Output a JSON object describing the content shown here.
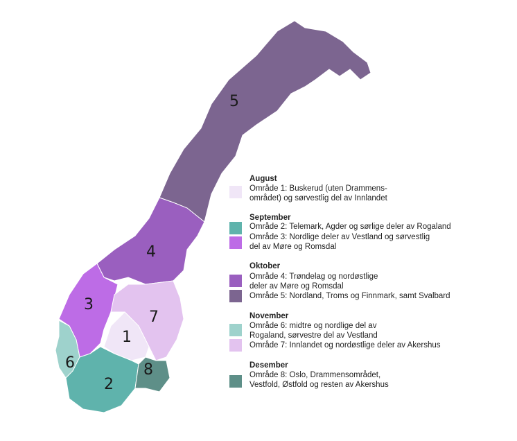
{
  "regions": [
    {
      "number": "1",
      "color": "#f0e6f7"
    },
    {
      "number": "2",
      "color": "#5fb3ac"
    },
    {
      "number": "3",
      "color": "#bd6ce6"
    },
    {
      "number": "4",
      "color": "#9a5fbf"
    },
    {
      "number": "5",
      "color": "#7c6590"
    },
    {
      "number": "6",
      "color": "#9ed2cc"
    },
    {
      "number": "7",
      "color": "#e3c3ef"
    },
    {
      "number": "8",
      "color": "#5e8f88"
    }
  ],
  "legend": [
    {
      "month": "August",
      "items": [
        {
          "lines": [
            "Område 1: Buskerud (uten Drammens-",
            "området) og sørvestlig del av Innlandet"
          ],
          "color": "#f0e6f7"
        }
      ]
    },
    {
      "month": "September",
      "items": [
        {
          "lines": [
            "Område 2: Telemark, Agder og sørlige deler av Rogaland"
          ],
          "color": "#5fb3ac"
        },
        {
          "lines": [
            "Område 3: Nordlige deler av Vestland og sørvestlig",
            "del av Møre og Romsdal"
          ],
          "color": "#bd6ce6"
        }
      ]
    },
    {
      "month": "Oktober",
      "items": [
        {
          "lines": [
            "Område 4: Trøndelag og nordøstlige",
            "deler av Møre og Romsdal"
          ],
          "color": "#9a5fbf"
        },
        {
          "lines": [
            "Område 5: Nordland, Troms og Finnmark, samt Svalbard"
          ],
          "color": "#7c6590"
        }
      ]
    },
    {
      "month": "November",
      "items": [
        {
          "lines": [
            "Område 6: midtre og nordlige del av",
            "Rogaland, sørvestre del av Vestland"
          ],
          "color": "#9ed2cc"
        },
        {
          "lines": [
            "Område 7: Innlandet og nordøstlige deler av Akershus"
          ],
          "color": "#e3c3ef"
        }
      ]
    },
    {
      "month": "Desember",
      "items": [
        {
          "lines": [
            "Område 8: Oslo, Drammensområdet,",
            "Vestfold, Østfold og resten av Akershus"
          ],
          "color": "#5e8f88"
        }
      ]
    }
  ]
}
